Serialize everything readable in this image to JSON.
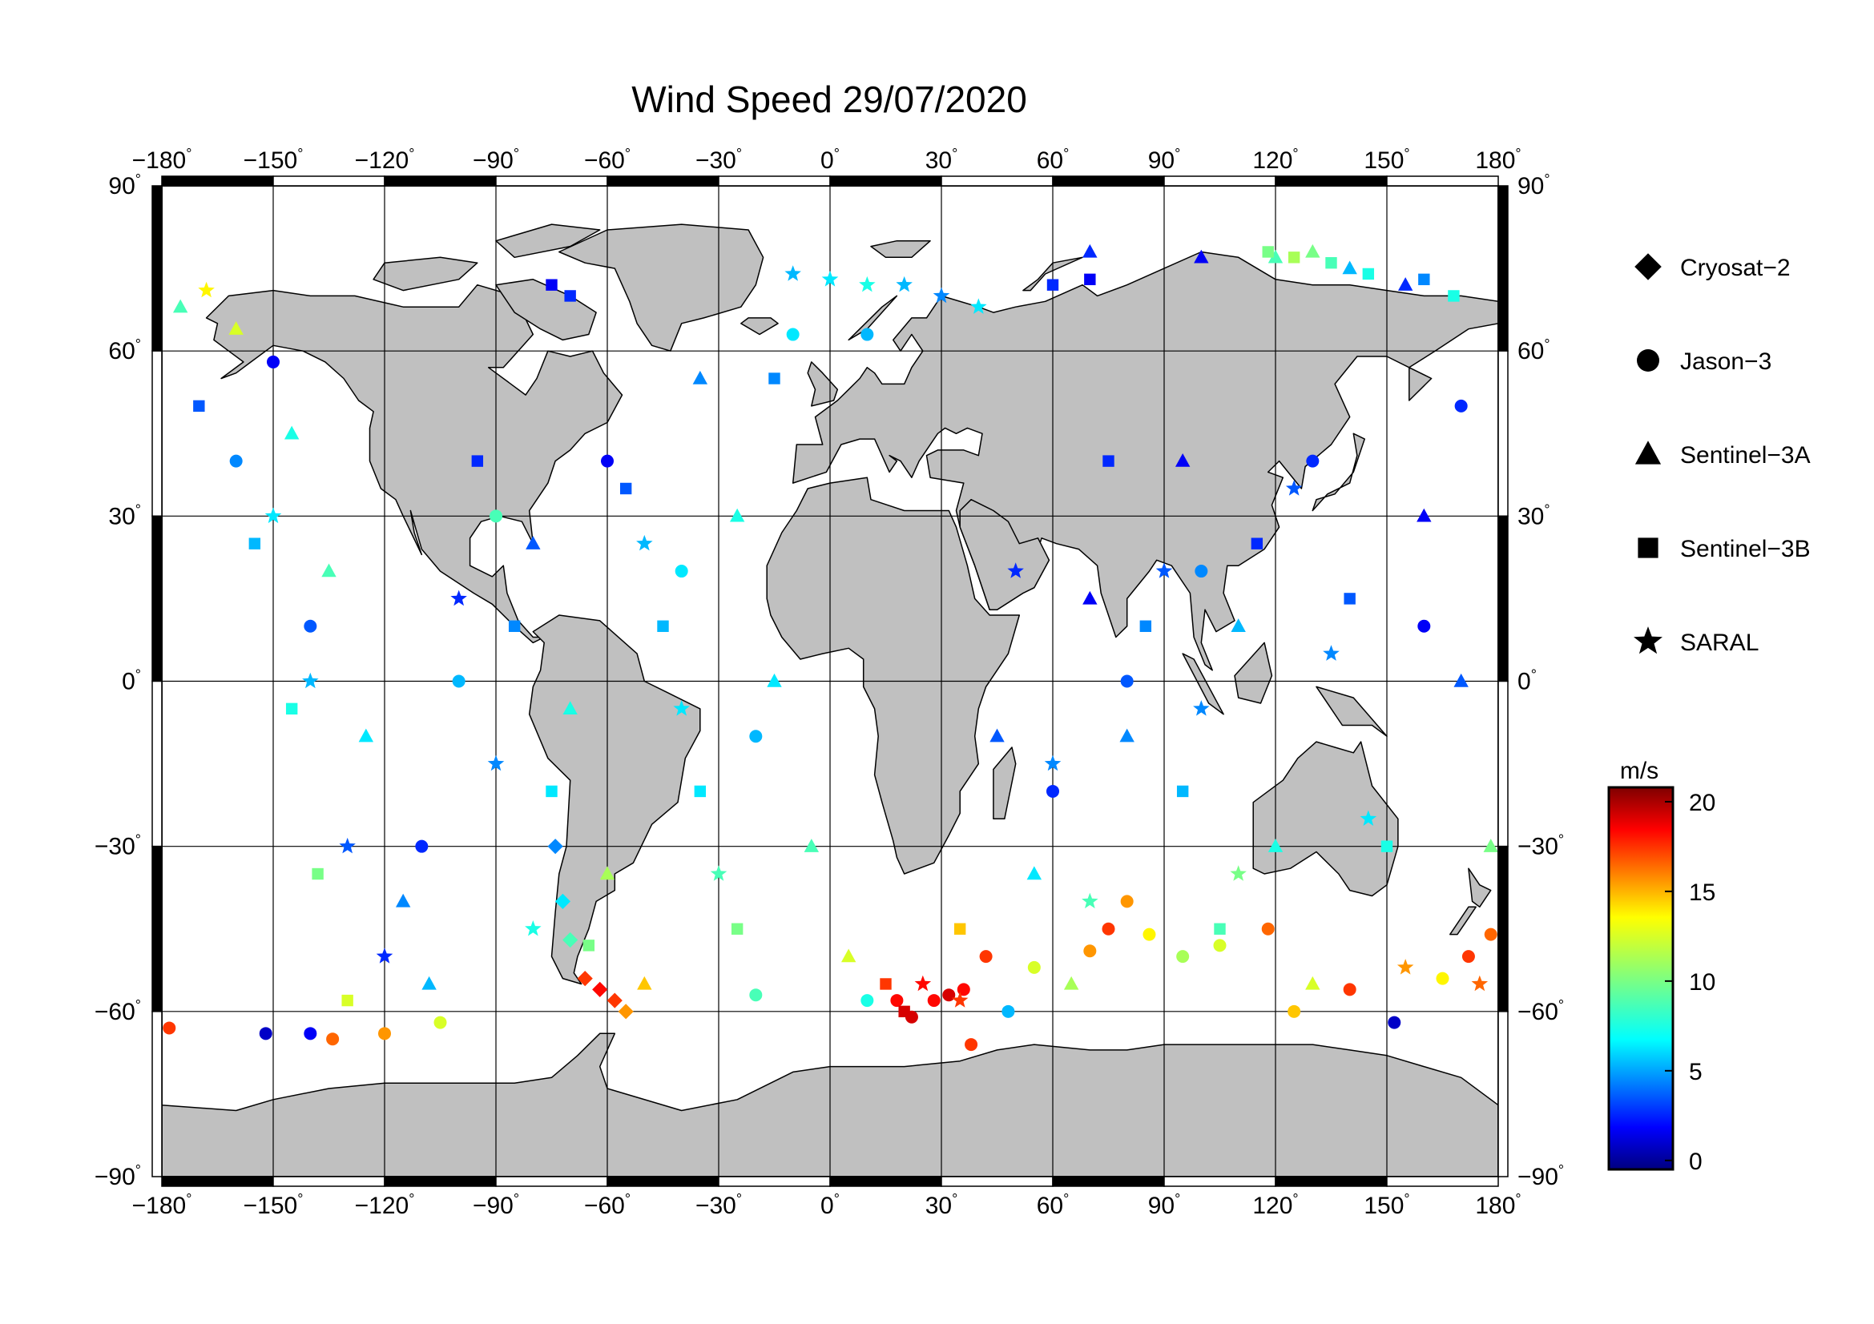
{
  "title": "Wind Speed 29/07/2020",
  "map": {
    "lon_range": [
      -180,
      180
    ],
    "lat_range": [
      -90,
      90
    ],
    "lon_ticks": [
      -180,
      -150,
      -120,
      -90,
      -60,
      -30,
      0,
      30,
      60,
      90,
      120,
      150,
      180
    ],
    "lat_ticks": [
      90,
      60,
      30,
      0,
      -30,
      -60,
      -90
    ],
    "degree_mark": "°",
    "gridlines": true,
    "land_color": "#c0c0c0",
    "ocean_color": "#ffffff",
    "coast_color": "#000000"
  },
  "legend": {
    "placement": "right",
    "items": [
      {
        "label": "Cryosat−2",
        "icon": "diamond"
      },
      {
        "label": "Jason−3",
        "icon": "circle"
      },
      {
        "label": "Sentinel−3A",
        "icon": "triangle"
      },
      {
        "label": "Sentinel−3B",
        "icon": "square"
      },
      {
        "label": "SARAL",
        "icon": "star"
      }
    ]
  },
  "colorbar": {
    "unit": "m/s",
    "min": -0.5,
    "max": 20.8,
    "ticks": [
      0,
      5,
      10,
      15,
      20
    ],
    "colormap": "jet"
  },
  "chart_data": {
    "type": "scatter",
    "title": "Wind Speed 29/07/2020",
    "xlim": [
      -180,
      180
    ],
    "ylim": [
      -90,
      90
    ],
    "grid": true,
    "value_unit": "m/s",
    "series": [
      {
        "name": "Cryosat−2",
        "marker": "diamond",
        "points": [
          [
            -66,
            -54,
            17
          ],
          [
            -62,
            -56,
            18
          ],
          [
            -58,
            -58,
            17
          ],
          [
            -55,
            -60,
            15
          ],
          [
            -70,
            -47,
            9
          ],
          [
            -72,
            -40,
            7
          ],
          [
            -74,
            -30,
            5
          ]
        ]
      },
      {
        "name": "Jason−3",
        "marker": "circle",
        "points": [
          [
            -178,
            -63,
            17
          ],
          [
            -152,
            -64,
            1
          ],
          [
            -140,
            -64,
            2
          ],
          [
            -134,
            -65,
            16
          ],
          [
            -120,
            -64,
            15
          ],
          [
            -105,
            -62,
            12
          ],
          [
            -20,
            -57,
            9
          ],
          [
            10,
            -58,
            8
          ],
          [
            18,
            -58,
            18
          ],
          [
            22,
            -61,
            19
          ],
          [
            28,
            -58,
            18
          ],
          [
            32,
            -57,
            19
          ],
          [
            36,
            -56,
            18
          ],
          [
            38,
            -66,
            17
          ],
          [
            42,
            -50,
            17
          ],
          [
            48,
            -60,
            6
          ],
          [
            55,
            -52,
            12
          ],
          [
            70,
            -49,
            15
          ],
          [
            75,
            -45,
            17
          ],
          [
            80,
            -40,
            15
          ],
          [
            86,
            -46,
            13
          ],
          [
            95,
            -50,
            11
          ],
          [
            105,
            -48,
            12
          ],
          [
            118,
            -45,
            16
          ],
          [
            125,
            -60,
            14
          ],
          [
            140,
            -56,
            17
          ],
          [
            152,
            -62,
            1
          ],
          [
            165,
            -54,
            13
          ],
          [
            172,
            -50,
            17
          ],
          [
            178,
            -46,
            16
          ],
          [
            -110,
            -30,
            3
          ],
          [
            -100,
            0,
            6
          ],
          [
            -90,
            30,
            9
          ],
          [
            -140,
            10,
            4
          ],
          [
            -160,
            40,
            5
          ],
          [
            -60,
            40,
            2
          ],
          [
            -40,
            20,
            7
          ],
          [
            -20,
            -10,
            6
          ],
          [
            60,
            -20,
            3
          ],
          [
            80,
            0,
            4
          ],
          [
            100,
            20,
            5
          ],
          [
            130,
            40,
            3
          ],
          [
            160,
            10,
            2
          ],
          [
            170,
            50,
            3
          ],
          [
            -150,
            58,
            2
          ],
          [
            -10,
            63,
            7
          ],
          [
            10,
            63,
            6
          ]
        ]
      },
      {
        "name": "Sentinel−3A",
        "marker": "triangle",
        "points": [
          [
            -175,
            68,
            9
          ],
          [
            -160,
            64,
            12
          ],
          [
            -145,
            45,
            8
          ],
          [
            -135,
            20,
            9
          ],
          [
            -125,
            -10,
            7
          ],
          [
            -115,
            -40,
            5
          ],
          [
            -108,
            -55,
            6
          ],
          [
            -80,
            25,
            4
          ],
          [
            -70,
            -5,
            8
          ],
          [
            -60,
            -35,
            11
          ],
          [
            -50,
            -55,
            14
          ],
          [
            -35,
            55,
            5
          ],
          [
            -25,
            30,
            8
          ],
          [
            -15,
            0,
            7
          ],
          [
            -5,
            -30,
            9
          ],
          [
            5,
            -50,
            12
          ],
          [
            45,
            -10,
            4
          ],
          [
            55,
            -35,
            7
          ],
          [
            65,
            -55,
            11
          ],
          [
            70,
            15,
            2
          ],
          [
            80,
            -10,
            5
          ],
          [
            95,
            40,
            2
          ],
          [
            110,
            10,
            6
          ],
          [
            120,
            -30,
            8
          ],
          [
            130,
            -55,
            12
          ],
          [
            130,
            78,
            10
          ],
          [
            120,
            77,
            9
          ],
          [
            140,
            75,
            6
          ],
          [
            155,
            72,
            3
          ],
          [
            160,
            30,
            2
          ],
          [
            170,
            0,
            4
          ],
          [
            178,
            -30,
            10
          ],
          [
            100,
            77,
            2
          ],
          [
            70,
            78,
            3
          ]
        ]
      },
      {
        "name": "Sentinel−3B",
        "marker": "square",
        "points": [
          [
            -170,
            50,
            4
          ],
          [
            -155,
            25,
            6
          ],
          [
            -145,
            -5,
            8
          ],
          [
            -138,
            -35,
            10
          ],
          [
            -130,
            -58,
            12
          ],
          [
            -95,
            40,
            3
          ],
          [
            -85,
            10,
            5
          ],
          [
            -75,
            -20,
            7
          ],
          [
            -65,
            -48,
            10
          ],
          [
            -75,
            72,
            2
          ],
          [
            -70,
            70,
            3
          ],
          [
            -55,
            35,
            4
          ],
          [
            -45,
            10,
            6
          ],
          [
            -35,
            -20,
            7
          ],
          [
            -25,
            -45,
            10
          ],
          [
            -15,
            55,
            5
          ],
          [
            15,
            -55,
            17
          ],
          [
            20,
            -60,
            19
          ],
          [
            35,
            -45,
            14
          ],
          [
            60,
            72,
            3
          ],
          [
            70,
            73,
            2
          ],
          [
            75,
            40,
            3
          ],
          [
            85,
            10,
            5
          ],
          [
            95,
            -20,
            6
          ],
          [
            105,
            -45,
            9
          ],
          [
            118,
            78,
            10
          ],
          [
            125,
            77,
            11
          ],
          [
            135,
            76,
            9
          ],
          [
            145,
            74,
            8
          ],
          [
            160,
            73,
            5
          ],
          [
            168,
            70,
            8
          ],
          [
            115,
            25,
            3
          ],
          [
            140,
            15,
            4
          ],
          [
            150,
            -30,
            8
          ]
        ]
      },
      {
        "name": "SARAL",
        "marker": "star",
        "points": [
          [
            -168,
            71,
            13
          ],
          [
            -150,
            30,
            7
          ],
          [
            -140,
            0,
            6
          ],
          [
            -130,
            -30,
            4
          ],
          [
            -120,
            -50,
            3
          ],
          [
            -100,
            15,
            3
          ],
          [
            -90,
            -15,
            5
          ],
          [
            -80,
            -45,
            8
          ],
          [
            -50,
            25,
            6
          ],
          [
            -40,
            -5,
            7
          ],
          [
            -30,
            -35,
            9
          ],
          [
            -10,
            74,
            6
          ],
          [
            0,
            73,
            7
          ],
          [
            10,
            72,
            8
          ],
          [
            20,
            72,
            6
          ],
          [
            30,
            70,
            5
          ],
          [
            40,
            68,
            7
          ],
          [
            25,
            -55,
            18
          ],
          [
            35,
            -58,
            17
          ],
          [
            50,
            20,
            3
          ],
          [
            60,
            -15,
            5
          ],
          [
            70,
            -40,
            9
          ],
          [
            90,
            20,
            4
          ],
          [
            100,
            -5,
            5
          ],
          [
            110,
            -35,
            10
          ],
          [
            125,
            35,
            4
          ],
          [
            135,
            5,
            5
          ],
          [
            145,
            -25,
            7
          ],
          [
            155,
            -52,
            15
          ],
          [
            175,
            -55,
            16
          ]
        ]
      }
    ]
  }
}
